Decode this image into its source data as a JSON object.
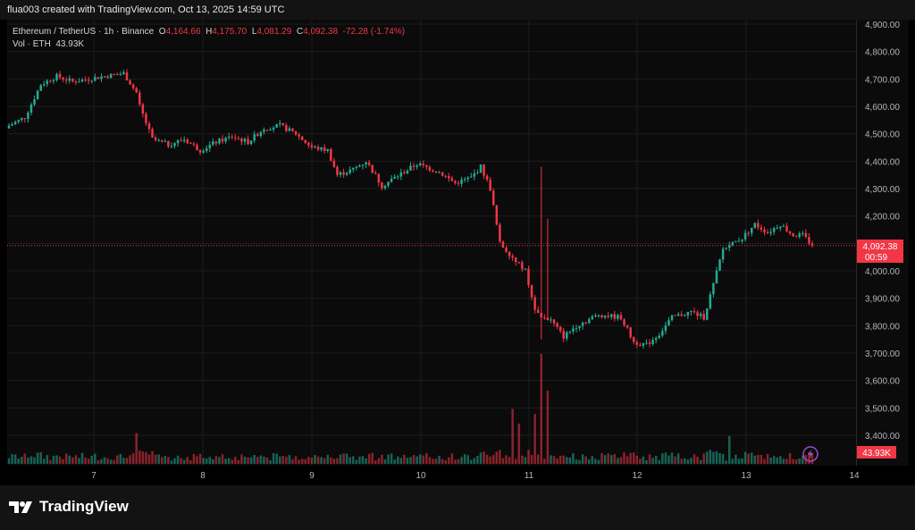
{
  "header": {
    "credit": "flua003 created with TradingView.com, Oct 13, 2025 14:59 UTC"
  },
  "legend": {
    "symbol": "Ethereum / TetherUS · 1h · Binance",
    "open_label": "O",
    "open": "4,164.66",
    "high_label": "H",
    "high": "4,175.70",
    "low_label": "L",
    "low": "4,081.29",
    "close_label": "C",
    "close": "4,092.38",
    "change": "-72.28 (-1.74%)",
    "vol_label": "Vol · ETH",
    "vol_value": "43.93K"
  },
  "price_tag": {
    "price": "4,092.38",
    "countdown": "00:59"
  },
  "volume_tag": "43.93K",
  "brand": "TradingView",
  "colors": {
    "up": "#22ab94",
    "down": "#f23645",
    "grid": "#1c1c1c",
    "background": "#0b0b0b"
  },
  "chart_data": {
    "type": "candlestick",
    "title": "Ethereum / TetherUS · 1h · Binance",
    "ylim": [
      3350,
      4900
    ],
    "y_ticks": [
      "3,400.00",
      "3,500.00",
      "3,600.00",
      "3,700.00",
      "3,800.00",
      "3,900.00",
      "4,000.00",
      "4,100.00",
      "4,200.00",
      "4,300.00",
      "4,400.00",
      "4,500.00",
      "4,600.00",
      "4,700.00",
      "4,800.00",
      "4,900.00"
    ],
    "y_tick_values": [
      3400,
      3500,
      3600,
      3700,
      3800,
      3900,
      4000,
      4100,
      4200,
      4300,
      4400,
      4500,
      4600,
      4700,
      4800,
      4900
    ],
    "x_ticks": [
      "7",
      "8",
      "9",
      "10",
      "11",
      "12",
      "13",
      "14"
    ],
    "last_price": 4092.38,
    "grid": true,
    "waypoints_close": [
      [
        0,
        4530
      ],
      [
        5,
        4560
      ],
      [
        10,
        4680
      ],
      [
        15,
        4710
      ],
      [
        20,
        4690
      ],
      [
        25,
        4700
      ],
      [
        30,
        4710
      ],
      [
        36,
        4720
      ],
      [
        40,
        4650
      ],
      [
        41,
        4600
      ],
      [
        45,
        4480
      ],
      [
        50,
        4460
      ],
      [
        55,
        4480
      ],
      [
        60,
        4440
      ],
      [
        65,
        4470
      ],
      [
        70,
        4490
      ],
      [
        75,
        4470
      ],
      [
        80,
        4520
      ],
      [
        85,
        4530
      ],
      [
        90,
        4500
      ],
      [
        95,
        4450
      ],
      [
        100,
        4440
      ],
      [
        103,
        4350
      ],
      [
        108,
        4370
      ],
      [
        112,
        4400
      ],
      [
        117,
        4310
      ],
      [
        121,
        4340
      ],
      [
        128,
        4390
      ],
      [
        135,
        4360
      ],
      [
        140,
        4320
      ],
      [
        145,
        4340
      ],
      [
        148,
        4380
      ],
      [
        151,
        4300
      ],
      [
        154,
        4100
      ],
      [
        158,
        4050
      ],
      [
        162,
        4000
      ],
      [
        165,
        3850
      ],
      [
        170,
        3820
      ],
      [
        174,
        3760
      ],
      [
        178,
        3800
      ],
      [
        185,
        3840
      ],
      [
        192,
        3830
      ],
      [
        196,
        3740
      ],
      [
        200,
        3730
      ],
      [
        204,
        3770
      ],
      [
        208,
        3830
      ],
      [
        214,
        3850
      ],
      [
        218,
        3830
      ],
      [
        221,
        3950
      ],
      [
        224,
        4080
      ],
      [
        230,
        4120
      ],
      [
        234,
        4170
      ],
      [
        238,
        4140
      ],
      [
        242,
        4170
      ],
      [
        246,
        4130
      ],
      [
        249,
        4130
      ],
      [
        252,
        4092
      ]
    ],
    "wick_events": [
      {
        "index": 167,
        "high": 4380,
        "low": 3750
      },
      {
        "index": 169,
        "high": 4190,
        "low": 3820
      }
    ],
    "volume_markers": [
      {
        "index": 40,
        "value": 42
      },
      {
        "index": 158,
        "value": 75
      },
      {
        "index": 160,
        "value": 55
      },
      {
        "index": 165,
        "value": 68
      },
      {
        "index": 167,
        "value": 150
      },
      {
        "index": 169,
        "value": 100
      },
      {
        "index": 226,
        "value": 38
      }
    ],
    "last_volume": 43.93
  }
}
